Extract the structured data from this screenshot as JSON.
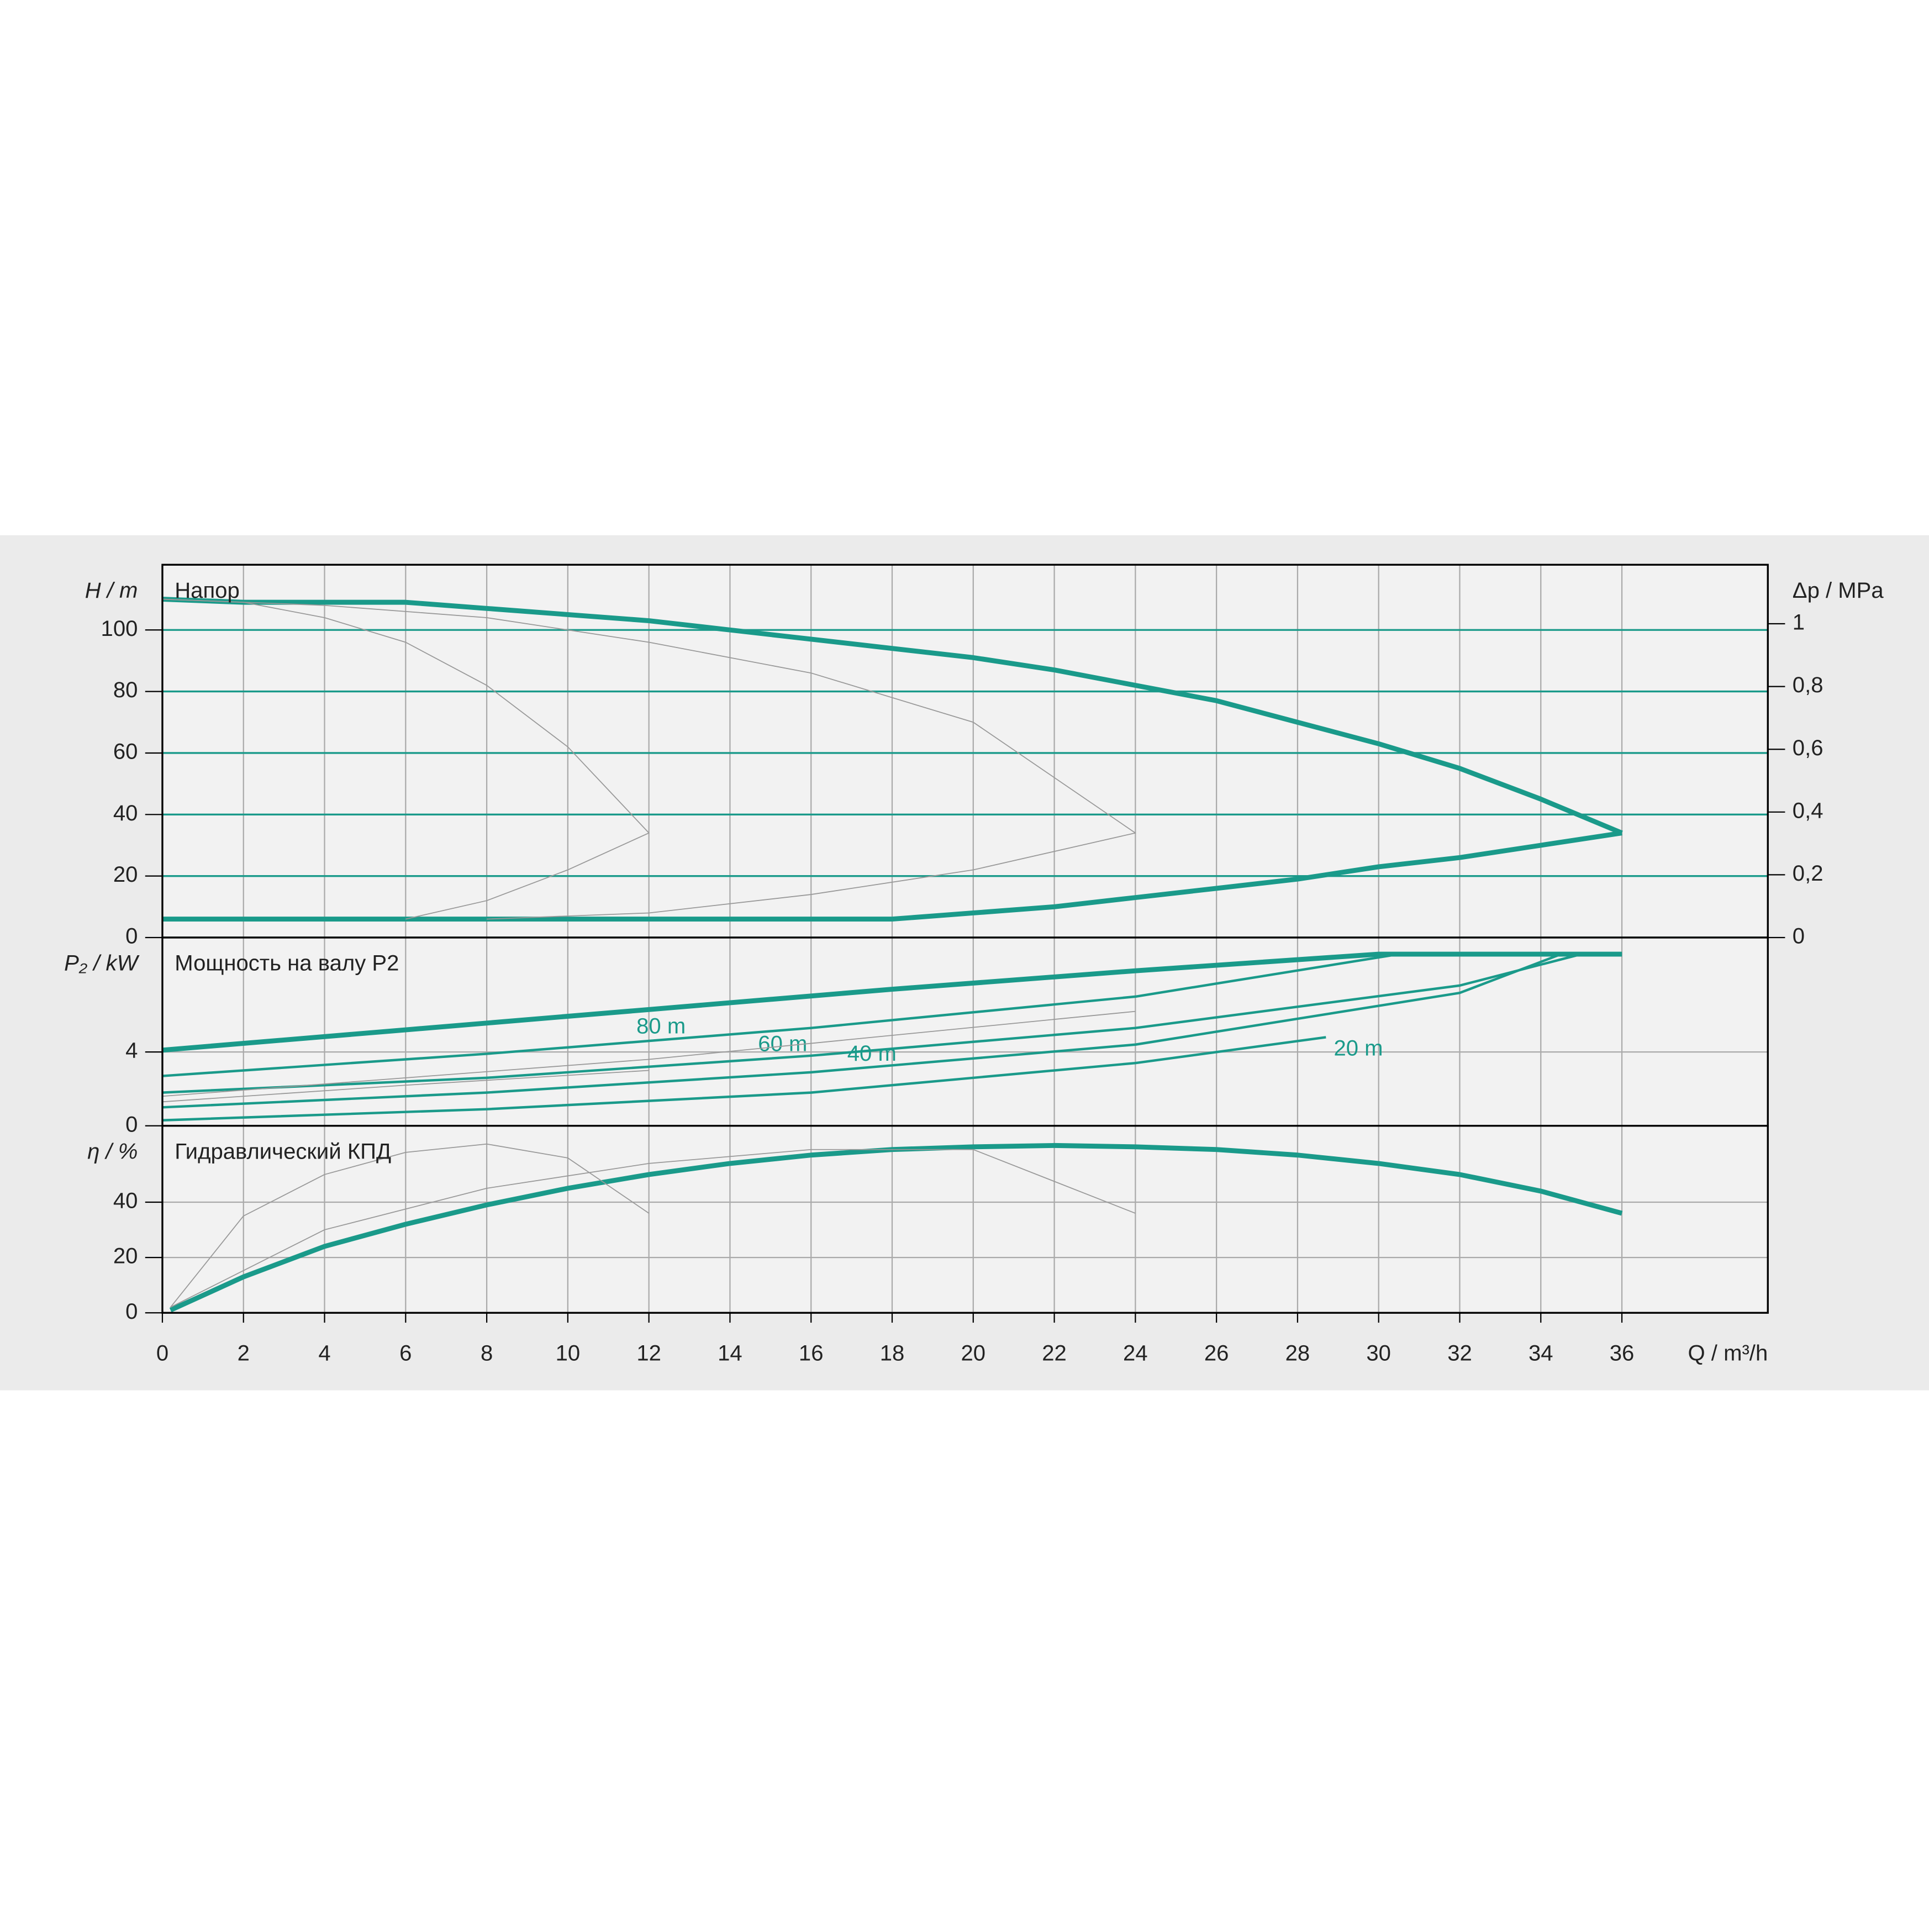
{
  "chart_data": [
    {
      "type": "line",
      "title": "Напор",
      "ylabel": "H / m",
      "y2label": "Δp / MPa",
      "xlim": [
        0,
        39.6
      ],
      "xticks": [
        0,
        2,
        4,
        6,
        8,
        10,
        12,
        14,
        16,
        18,
        20,
        22,
        24,
        26,
        28,
        30,
        32,
        34,
        36
      ],
      "ylim": [
        0,
        121.2
      ],
      "yticks": [
        0,
        20,
        40,
        60,
        80,
        100
      ],
      "hgrid_color": "#1a9a8a",
      "y2lim": [
        0,
        1.188
      ],
      "y2ticks": [
        0,
        {
          "value": 0.2,
          "label": "0,2"
        },
        {
          "value": 0.4,
          "label": "0,4"
        },
        {
          "value": 0.6,
          "label": "0,6"
        },
        {
          "value": 0.8,
          "label": "0,8"
        },
        1
      ],
      "series": [
        {
          "color": "#1a9a8a",
          "style": "thick",
          "x": [
            0,
            2,
            4,
            6,
            8,
            10,
            12,
            14,
            16,
            18,
            20,
            22,
            24,
            26,
            28,
            30,
            32,
            34,
            36
          ],
          "values": [
            110,
            109,
            109,
            109,
            107,
            105,
            103,
            100,
            97,
            94,
            91,
            87,
            82,
            77,
            70,
            63,
            55,
            45,
            34
          ]
        },
        {
          "color": "#1a9a8a",
          "style": "thick",
          "x": [
            0,
            6,
            12,
            18,
            20,
            22,
            24,
            26,
            28,
            30,
            32,
            34,
            36
          ],
          "values": [
            6,
            6,
            6,
            6,
            8,
            10,
            13,
            16,
            19,
            23,
            26,
            30,
            34
          ]
        },
        {
          "color": "#999999",
          "style": "thin",
          "x": [
            0,
            2,
            4,
            6,
            8,
            10,
            12,
            10,
            8,
            6
          ],
          "values": [
            110,
            109,
            104,
            96,
            82,
            62,
            34,
            22,
            12,
            6
          ]
        },
        {
          "color": "#999999",
          "style": "thin",
          "x": [
            0,
            4,
            8,
            12,
            16,
            20,
            24,
            20,
            16,
            12,
            8
          ],
          "values": [
            110,
            108,
            104,
            96,
            86,
            70,
            34,
            22,
            14,
            8,
            6
          ]
        }
      ]
    },
    {
      "type": "line",
      "title": "Мощность на валу P2",
      "ylabel": "P₂ / kW",
      "xlim": [
        0,
        39.6
      ],
      "xticks": [
        0,
        2,
        4,
        6,
        8,
        10,
        12,
        14,
        16,
        18,
        20,
        22,
        24,
        26,
        28,
        30,
        32,
        34,
        36
      ],
      "ylim": [
        0,
        10.2
      ],
      "yticks": [
        0,
        4
      ],
      "series": [
        {
          "color": "#1a9a8a",
          "style": "thick",
          "x": [
            0,
            6,
            12,
            18,
            24,
            30,
            36
          ],
          "values": [
            4.1,
            5.2,
            6.3,
            7.4,
            8.4,
            9.3,
            9.3
          ]
        },
        {
          "name": "80 m",
          "color": "#1a9a8a",
          "style": "mid",
          "x": [
            0,
            8,
            16,
            24,
            30.5
          ],
          "values": [
            2.7,
            3.9,
            5.3,
            7.0,
            9.3
          ]
        },
        {
          "name": "60 m",
          "color": "#1a9a8a",
          "style": "mid",
          "x": [
            0,
            8,
            16,
            24,
            32,
            35
          ],
          "values": [
            1.8,
            2.6,
            3.8,
            5.3,
            7.6,
            9.3
          ]
        },
        {
          "name": "40 m",
          "color": "#1a9a8a",
          "style": "mid",
          "x": [
            0,
            8,
            16,
            24,
            32,
            34.5,
            36
          ],
          "values": [
            1.0,
            1.8,
            2.9,
            4.4,
            7.2,
            9.3,
            9.3
          ]
        },
        {
          "name": "20 m",
          "color": "#1a9a8a",
          "style": "mid",
          "x": [
            0,
            8,
            16,
            24,
            28.7
          ],
          "values": [
            0.3,
            0.9,
            1.8,
            3.4,
            4.8
          ]
        },
        {
          "color": "#999999",
          "style": "thin",
          "x": [
            0,
            6,
            12
          ],
          "values": [
            1.3,
            2.2,
            3.0
          ]
        },
        {
          "color": "#999999",
          "style": "thin",
          "x": [
            0,
            12,
            24
          ],
          "values": [
            1.6,
            3.6,
            6.2
          ]
        }
      ]
    },
    {
      "type": "line",
      "title": "Гидравлический КПД",
      "ylabel": "η / %",
      "xlabel": "Q / m³/h",
      "xlim": [
        0,
        39.6
      ],
      "xticks": [
        0,
        2,
        4,
        6,
        8,
        10,
        12,
        14,
        16,
        18,
        20,
        22,
        24,
        26,
        28,
        30,
        32,
        34,
        36
      ],
      "ylim": [
        0,
        67.6
      ],
      "yticks": [
        0,
        20,
        40
      ],
      "series": [
        {
          "color": "#1a9a8a",
          "style": "thick",
          "x": [
            0.2,
            2,
            4,
            6,
            8,
            10,
            12,
            14,
            16,
            18,
            20,
            22,
            24,
            26,
            28,
            30,
            32,
            34,
            36
          ],
          "values": [
            1,
            13,
            24,
            32,
            39,
            45,
            50,
            54,
            57,
            59,
            60,
            60.5,
            60,
            59,
            57,
            54,
            50,
            44,
            36
          ]
        },
        {
          "color": "#999999",
          "style": "thin",
          "x": [
            0.2,
            2,
            4,
            6,
            8,
            10,
            12
          ],
          "values": [
            2,
            35,
            50,
            58,
            61,
            56,
            36
          ]
        },
        {
          "color": "#999999",
          "style": "thin",
          "x": [
            0.2,
            4,
            8,
            12,
            16,
            20,
            24
          ],
          "values": [
            2,
            30,
            45,
            54,
            59,
            59,
            36
          ]
        }
      ]
    }
  ]
}
